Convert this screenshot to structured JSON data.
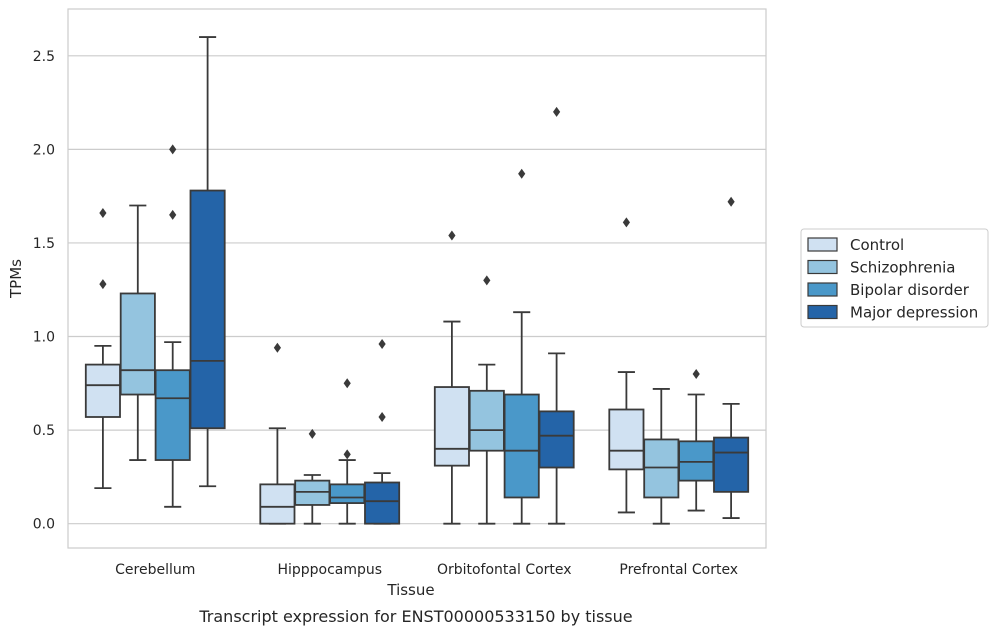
{
  "chart_data": {
    "type": "boxplot",
    "title": "",
    "caption": "Transcript expression for ENST00000533150 by tissue",
    "xlabel": "Tissue",
    "ylabel": "TPMs",
    "ylim": [
      -0.13,
      2.75
    ],
    "yticks": [
      0.0,
      0.5,
      1.0,
      1.5,
      2.0,
      2.5
    ],
    "ytick_labels": [
      "0.0",
      "0.5",
      "1.0",
      "1.5",
      "2.0",
      "2.5"
    ],
    "grid": "horizontal",
    "legend_position": "right",
    "categories": [
      "Cerebellum",
      "Hipppocampus",
      "Orbitofontal Cortex",
      "Prefrontal Cortex"
    ],
    "series": [
      {
        "name": "Control",
        "color": "#d0e1f2",
        "boxes": [
          {
            "whisker_low": 0.19,
            "q1": 0.57,
            "median": 0.74,
            "q3": 0.85,
            "whisker_high": 0.95,
            "outliers": [
              1.28,
              1.66
            ]
          },
          {
            "whisker_low": 0.0,
            "q1": 0.0,
            "median": 0.09,
            "q3": 0.21,
            "whisker_high": 0.51,
            "outliers": [
              0.94
            ]
          },
          {
            "whisker_low": 0.0,
            "q1": 0.31,
            "median": 0.4,
            "q3": 0.73,
            "whisker_high": 1.08,
            "outliers": [
              1.54
            ]
          },
          {
            "whisker_low": 0.06,
            "q1": 0.29,
            "median": 0.39,
            "q3": 0.61,
            "whisker_high": 0.81,
            "outliers": [
              1.61
            ]
          }
        ]
      },
      {
        "name": "Schizophrenia",
        "color": "#94c4df",
        "boxes": [
          {
            "whisker_low": 0.34,
            "q1": 0.69,
            "median": 0.82,
            "q3": 1.23,
            "whisker_high": 1.7,
            "outliers": []
          },
          {
            "whisker_low": 0.0,
            "q1": 0.1,
            "median": 0.17,
            "q3": 0.23,
            "whisker_high": 0.26,
            "outliers": [
              0.48
            ]
          },
          {
            "whisker_low": 0.0,
            "q1": 0.39,
            "median": 0.5,
            "q3": 0.71,
            "whisker_high": 0.85,
            "outliers": [
              1.3
            ]
          },
          {
            "whisker_low": 0.0,
            "q1": 0.14,
            "median": 0.3,
            "q3": 0.45,
            "whisker_high": 0.72,
            "outliers": []
          }
        ]
      },
      {
        "name": "Bipolar disorder",
        "color": "#4a98c9",
        "boxes": [
          {
            "whisker_low": 0.09,
            "q1": 0.34,
            "median": 0.67,
            "q3": 0.82,
            "whisker_high": 0.97,
            "outliers": [
              1.65,
              2.0
            ]
          },
          {
            "whisker_low": 0.0,
            "q1": 0.11,
            "median": 0.14,
            "q3": 0.21,
            "whisker_high": 0.34,
            "outliers": [
              0.37,
              0.75
            ]
          },
          {
            "whisker_low": 0.0,
            "q1": 0.14,
            "median": 0.39,
            "q3": 0.69,
            "whisker_high": 1.13,
            "outliers": [
              1.87
            ]
          },
          {
            "whisker_low": 0.07,
            "q1": 0.23,
            "median": 0.33,
            "q3": 0.44,
            "whisker_high": 0.69,
            "outliers": [
              0.8
            ]
          }
        ]
      },
      {
        "name": "Major depression",
        "color": "#2464a8",
        "boxes": [
          {
            "whisker_low": 0.2,
            "q1": 0.51,
            "median": 0.87,
            "q3": 1.78,
            "whisker_high": 2.6,
            "outliers": []
          },
          {
            "whisker_low": 0.0,
            "q1": 0.0,
            "median": 0.12,
            "q3": 0.22,
            "whisker_high": 0.27,
            "outliers": [
              0.57,
              0.96
            ]
          },
          {
            "whisker_low": 0.0,
            "q1": 0.3,
            "median": 0.47,
            "q3": 0.6,
            "whisker_high": 0.91,
            "outliers": [
              2.2
            ]
          },
          {
            "whisker_low": 0.03,
            "q1": 0.17,
            "median": 0.38,
            "q3": 0.46,
            "whisker_high": 0.64,
            "outliers": [
              1.72
            ]
          }
        ]
      }
    ]
  }
}
